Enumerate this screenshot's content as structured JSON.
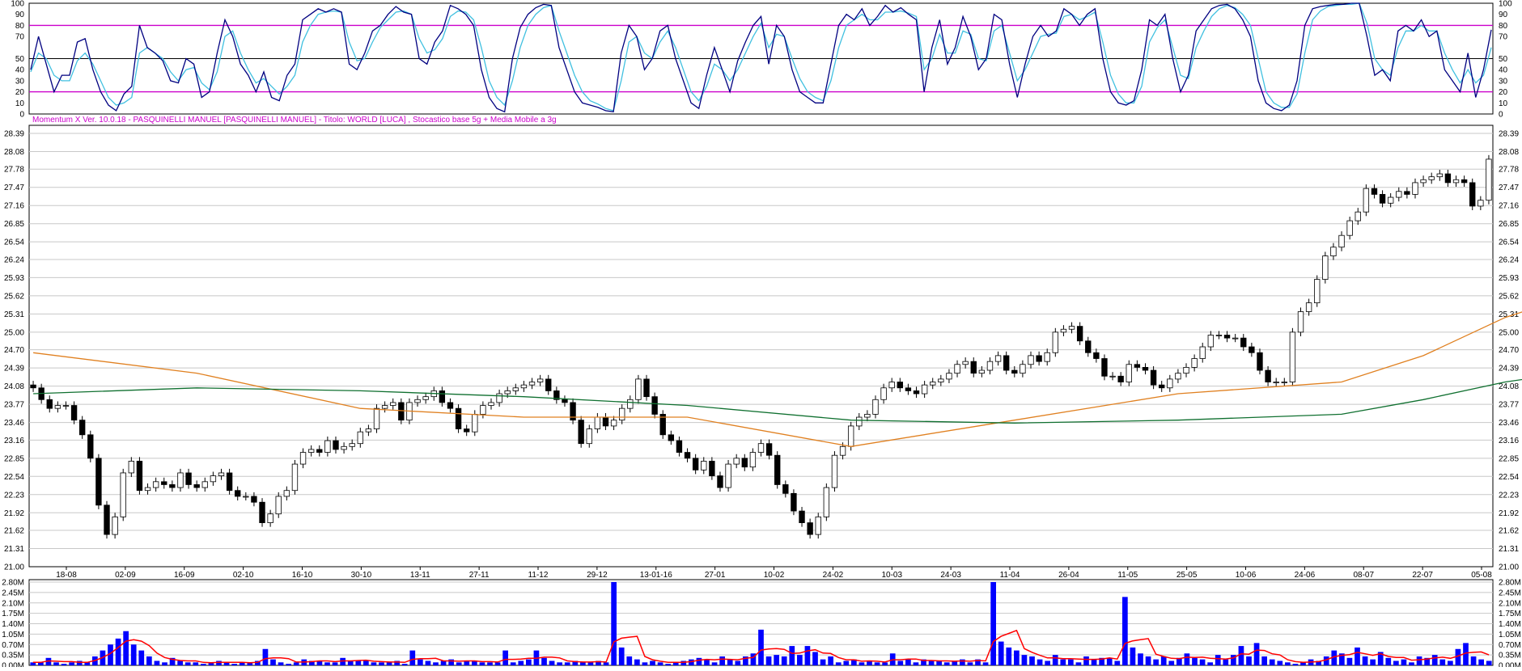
{
  "caption": "Momentum X  Ver. 10.0.18  -  PASQUINELLI MANUEL  [PASQUINELLI MANUEL] - Titolo: WORLD  [LUCA] ,   Stocastico base 5g + Media Mobile a 3g",
  "colors": {
    "osc_k": "#000080",
    "osc_d": "#40c0e0",
    "osc_levels": "#cc00cc",
    "ma_fast": "#e08020",
    "ma_slow": "#107030",
    "volume_bar": "#0000ff",
    "volume_ma": "#ff0000",
    "grid": "#c8c8c8",
    "highlight_date": "#ff0000"
  },
  "chart_data": [
    {
      "type": "line",
      "name_in_chart": "Stocastico base 5g + Media Mobile a 3g",
      "ylim": [
        0,
        100
      ],
      "yticks": [
        "0",
        "10",
        "20",
        "30",
        "40",
        "50",
        "70",
        "80",
        "90",
        "100"
      ],
      "level_lines": [
        20,
        50,
        80
      ],
      "k_values": [
        40,
        70,
        45,
        20,
        35,
        35,
        65,
        68,
        40,
        20,
        8,
        3,
        18,
        25,
        80,
        60,
        55,
        48,
        30,
        28,
        50,
        45,
        15,
        20,
        55,
        85,
        70,
        45,
        35,
        20,
        38,
        15,
        12,
        35,
        45,
        85,
        90,
        95,
        92,
        95,
        92,
        45,
        40,
        55,
        75,
        80,
        90,
        97,
        92,
        90,
        50,
        45,
        65,
        75,
        98,
        95,
        90,
        80,
        40,
        15,
        5,
        2,
        50,
        78,
        90,
        96,
        99,
        98,
        60,
        40,
        20,
        10,
        8,
        6,
        3,
        2,
        55,
        80,
        70,
        40,
        50,
        75,
        80,
        50,
        30,
        10,
        5,
        35,
        60,
        40,
        20,
        48,
        65,
        80,
        88,
        45,
        80,
        70,
        40,
        20,
        15,
        10,
        10,
        45,
        80,
        90,
        85,
        95,
        80,
        88,
        98,
        92,
        96,
        90,
        85,
        20,
        60,
        85,
        45,
        60,
        88,
        70,
        40,
        50,
        90,
        85,
        45,
        15,
        45,
        70,
        80,
        70,
        75,
        95,
        90,
        80,
        90,
        95,
        50,
        20,
        10,
        8,
        12,
        40,
        85,
        80,
        90,
        50,
        20,
        35,
        75,
        85,
        95,
        98,
        99,
        95,
        85,
        70,
        30,
        10,
        5,
        3,
        8,
        30,
        80,
        95,
        97,
        98,
        99,
        99,
        100,
        100,
        70,
        35,
        40,
        30,
        75,
        80,
        75,
        85,
        70,
        75,
        40,
        30,
        20,
        55,
        15,
        40,
        76
      ],
      "d_values": [
        38,
        55,
        50,
        35,
        30,
        30,
        48,
        55,
        45,
        30,
        15,
        8,
        10,
        15,
        55,
        60,
        55,
        50,
        38,
        30,
        40,
        42,
        28,
        22,
        38,
        70,
        75,
        55,
        40,
        28,
        32,
        25,
        18,
        25,
        35,
        65,
        80,
        90,
        92,
        93,
        92,
        65,
        48,
        50,
        65,
        78,
        85,
        92,
        93,
        90,
        68,
        55,
        58,
        68,
        88,
        93,
        92,
        85,
        60,
        30,
        15,
        8,
        30,
        60,
        80,
        90,
        96,
        98,
        75,
        55,
        35,
        20,
        12,
        9,
        5,
        3,
        30,
        65,
        70,
        55,
        50,
        65,
        75,
        60,
        40,
        20,
        12,
        25,
        45,
        40,
        30,
        40,
        55,
        70,
        82,
        60,
        72,
        70,
        50,
        32,
        20,
        15,
        12,
        30,
        60,
        80,
        85,
        90,
        85,
        85,
        92,
        92,
        93,
        91,
        88,
        40,
        50,
        72,
        55,
        55,
        75,
        72,
        50,
        48,
        75,
        80,
        55,
        30,
        40,
        55,
        70,
        72,
        73,
        88,
        90,
        85,
        88,
        92,
        65,
        35,
        18,
        10,
        10,
        25,
        65,
        78,
        85,
        60,
        35,
        32,
        60,
        75,
        88,
        95,
        98,
        96,
        90,
        80,
        50,
        20,
        10,
        6,
        6,
        18,
        55,
        85,
        93,
        97,
        98,
        99,
        99,
        100,
        82,
        50,
        40,
        35,
        60,
        75,
        75,
        80,
        75,
        75,
        55,
        40,
        28,
        40,
        28,
        35,
        60
      ]
    },
    {
      "type": "candlestick",
      "ylim": [
        21.0,
        28.39
      ],
      "yticks": [
        "21.00",
        "21.31",
        "21.62",
        "21.92",
        "22.23",
        "22.54",
        "22.85",
        "23.16",
        "23.46",
        "23.77",
        "24.08",
        "24.39",
        "24.70",
        "25.00",
        "25.31",
        "25.62",
        "25.93",
        "26.24",
        "26.54",
        "26.85",
        "27.16",
        "27.47",
        "27.78",
        "28.08",
        "28.39"
      ],
      "x_tick_labels": [
        "18-08",
        "02-09",
        "16-09",
        "02-10",
        "16-10",
        "30-10",
        "13-11",
        "27-11",
        "11-12",
        "29-12",
        "13-01-16",
        "27-01",
        "10-02",
        "24-02",
        "10-03",
        "24-03",
        "11-04",
        "26-04",
        "11-05",
        "25-05",
        "10-06",
        "24-06",
        "08-07",
        "22-07",
        "05-08"
      ],
      "highlighted_x_label": "13-01-16",
      "close": [
        24.05,
        23.85,
        23.7,
        23.75,
        23.75,
        23.5,
        23.25,
        22.85,
        22.05,
        21.55,
        21.85,
        22.6,
        22.8,
        22.3,
        22.35,
        22.45,
        22.4,
        22.35,
        22.6,
        22.4,
        22.35,
        22.45,
        22.55,
        22.6,
        22.3,
        22.2,
        22.2,
        22.1,
        21.75,
        21.9,
        22.2,
        22.3,
        22.75,
        22.95,
        23.0,
        22.95,
        23.15,
        23.0,
        23.05,
        23.1,
        23.3,
        23.35,
        23.7,
        23.75,
        23.8,
        23.5,
        23.8,
        23.85,
        23.9,
        24.0,
        23.8,
        23.7,
        23.35,
        23.3,
        23.6,
        23.75,
        23.8,
        23.95,
        24.0,
        24.05,
        24.1,
        24.15,
        24.2,
        24.0,
        23.85,
        23.8,
        23.5,
        23.1,
        23.35,
        23.55,
        23.4,
        23.5,
        23.7,
        23.85,
        24.2,
        23.9,
        23.6,
        23.25,
        23.15,
        22.95,
        22.85,
        22.65,
        22.8,
        22.55,
        22.35,
        22.75,
        22.85,
        22.7,
        22.95,
        23.1,
        22.9,
        22.4,
        22.25,
        21.95,
        21.75,
        21.55,
        21.85,
        22.35,
        22.9,
        23.05,
        23.4,
        23.55,
        23.6,
        23.85,
        24.05,
        24.15,
        24.05,
        24.0,
        23.95,
        24.1,
        24.15,
        24.2,
        24.3,
        24.45,
        24.5,
        24.3,
        24.35,
        24.5,
        24.6,
        24.35,
        24.3,
        24.45,
        24.6,
        24.5,
        24.65,
        25.0,
        25.05,
        25.1,
        24.85,
        24.65,
        24.55,
        24.25,
        24.25,
        24.15,
        24.45,
        24.4,
        24.35,
        24.1,
        24.05,
        24.2,
        24.3,
        24.4,
        24.55,
        24.75,
        24.95,
        24.95,
        24.9,
        24.9,
        24.75,
        24.65,
        24.35,
        24.15,
        24.15,
        24.15,
        25.0,
        25.35,
        25.5,
        25.9,
        26.3,
        26.45,
        26.65,
        26.9,
        27.05,
        27.45,
        27.35,
        27.2,
        27.3,
        27.4,
        27.35,
        27.55,
        27.6,
        27.65,
        27.7,
        27.55,
        27.6,
        27.55,
        27.15,
        27.25,
        27.95
      ]
    },
    {
      "type": "line",
      "series": [
        {
          "name_in_chart": "",
          "role": "ma_fast",
          "x_index": [
            0,
            20,
            40,
            60,
            80,
            100,
            120,
            140,
            160,
            170,
            180,
            190
          ],
          "values": [
            24.65,
            24.3,
            23.7,
            23.55,
            23.55,
            23.05,
            23.5,
            23.95,
            24.15,
            24.6,
            25.25,
            25.7
          ]
        },
        {
          "name_in_chart": "",
          "role": "ma_slow",
          "x_index": [
            0,
            20,
            40,
            60,
            80,
            100,
            120,
            140,
            160,
            170,
            180,
            190
          ],
          "values": [
            23.95,
            24.05,
            24.0,
            23.9,
            23.75,
            23.5,
            23.45,
            23.5,
            23.6,
            23.85,
            24.15,
            24.35
          ]
        }
      ]
    },
    {
      "type": "bar",
      "ylim": [
        0,
        2.8
      ],
      "yticks": [
        "0.00M",
        "0.35M",
        "0.70M",
        "1.05M",
        "1.40M",
        "1.75M",
        "2.10M",
        "2.45M",
        "2.80M"
      ],
      "volume_values": [
        0.1,
        0.1,
        0.25,
        0.1,
        0.05,
        0.1,
        0.15,
        0.1,
        0.3,
        0.5,
        0.7,
        0.9,
        1.15,
        0.7,
        0.5,
        0.3,
        0.15,
        0.1,
        0.25,
        0.15,
        0.1,
        0.1,
        0.05,
        0.1,
        0.15,
        0.1,
        0.05,
        0.1,
        0.1,
        0.15,
        0.55,
        0.2,
        0.1,
        0.05,
        0.1,
        0.2,
        0.15,
        0.15,
        0.1,
        0.1,
        0.25,
        0.15,
        0.15,
        0.15,
        0.1,
        0.1,
        0.1,
        0.15,
        0.05,
        0.5,
        0.2,
        0.15,
        0.1,
        0.15,
        0.2,
        0.1,
        0.15,
        0.15,
        0.1,
        0.1,
        0.1,
        0.5,
        0.1,
        0.15,
        0.2,
        0.5,
        0.25,
        0.15,
        0.1,
        0.1,
        0.15,
        0.1,
        0.1,
        0.15,
        0.1,
        2.8,
        0.6,
        0.3,
        0.2,
        0.1,
        0.15,
        0.1,
        0.05,
        0.1,
        0.15,
        0.2,
        0.25,
        0.2,
        0.1,
        0.3,
        0.2,
        0.15,
        0.3,
        0.4,
        1.2,
        0.3,
        0.35,
        0.3,
        0.65,
        0.35,
        0.65,
        0.45,
        0.2,
        0.3,
        0.1,
        0.15,
        0.2,
        0.1,
        0.15,
        0.1,
        0.1,
        0.4,
        0.15,
        0.2,
        0.1,
        0.2,
        0.15,
        0.15,
        0.1,
        0.15,
        0.2,
        0.1,
        0.2,
        0.1,
        2.8,
        0.8,
        0.6,
        0.5,
        0.35,
        0.3,
        0.2,
        0.15,
        0.35,
        0.2,
        0.2,
        0.1,
        0.3,
        0.2,
        0.25,
        0.25,
        0.15,
        2.3,
        0.6,
        0.4,
        0.3,
        0.2,
        0.3,
        0.15,
        0.25,
        0.4,
        0.25,
        0.2,
        0.1,
        0.35,
        0.2,
        0.35,
        0.65,
        0.3,
        0.75,
        0.3,
        0.2,
        0.15,
        0.1,
        0.05,
        0.1,
        0.2,
        0.15,
        0.3,
        0.5,
        0.4,
        0.25,
        0.6,
        0.3,
        0.2,
        0.45,
        0.25,
        0.15,
        0.2,
        0.1,
        0.3,
        0.25,
        0.35,
        0.2,
        0.15,
        0.55,
        0.75,
        0.3,
        0.2,
        0.15
      ]
    }
  ]
}
